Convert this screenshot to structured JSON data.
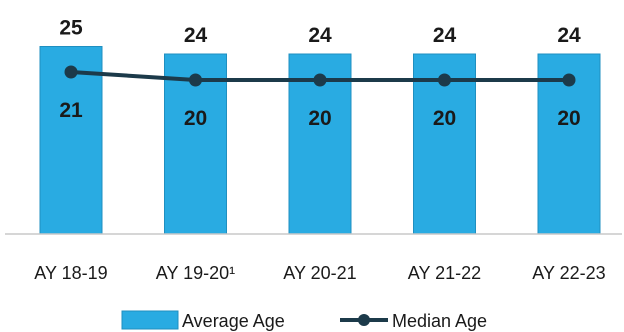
{
  "chart_data": {
    "type": "bar",
    "categories": [
      "AY 18-19",
      "AY 19-20¹",
      "AY 20-21",
      "AY 21-22",
      "AY 22-23"
    ],
    "series": [
      {
        "name": "Average Age",
        "type": "bar",
        "values": [
          25,
          24,
          24,
          24,
          24
        ],
        "color": "#29abe2"
      },
      {
        "name": "Median Age",
        "type": "line",
        "values": [
          21,
          20,
          20,
          20,
          20
        ],
        "color": "#1c3a4a"
      }
    ],
    "legend_position": "bottom",
    "grid": false
  }
}
